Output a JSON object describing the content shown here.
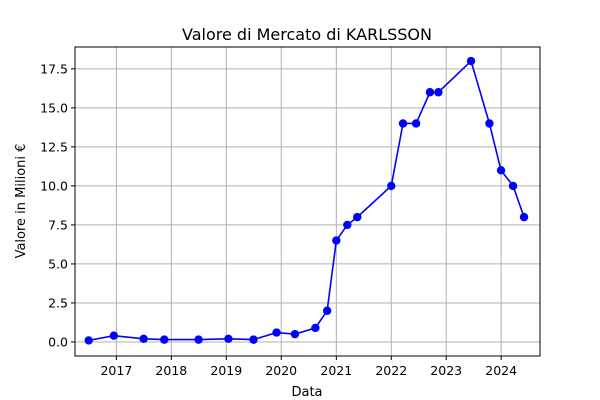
{
  "chart_data": {
    "type": "line",
    "title": "Valore di Mercato di KARLSSON",
    "xlabel": "Data",
    "ylabel": "Valore in Milioni €",
    "ylim": [
      -0.9,
      18.9
    ],
    "xlim": [
      "2016-04-01",
      "2024-09-15"
    ],
    "grid": true,
    "line_color": "#0000ff",
    "marker": "circle",
    "x_ticks": [
      {
        "label": "2017",
        "date": "2017-01-01"
      },
      {
        "label": "2018",
        "date": "2018-01-01"
      },
      {
        "label": "2019",
        "date": "2019-01-01"
      },
      {
        "label": "2020",
        "date": "2020-01-01"
      },
      {
        "label": "2021",
        "date": "2021-01-01"
      },
      {
        "label": "2022",
        "date": "2022-01-01"
      },
      {
        "label": "2023",
        "date": "2023-01-01"
      },
      {
        "label": "2024",
        "date": "2024-01-01"
      }
    ],
    "y_ticks": [
      {
        "label": "0.0",
        "value": 0.0
      },
      {
        "label": "2.5",
        "value": 2.5
      },
      {
        "label": "5.0",
        "value": 5.0
      },
      {
        "label": "7.5",
        "value": 7.5
      },
      {
        "label": "10.0",
        "value": 10.0
      },
      {
        "label": "12.5",
        "value": 12.5
      },
      {
        "label": "15.0",
        "value": 15.0
      },
      {
        "label": "17.5",
        "value": 17.5
      }
    ],
    "series": [
      {
        "points": [
          {
            "x": "2016-07-01",
            "y": 0.1
          },
          {
            "x": "2016-12-15",
            "y": 0.4
          },
          {
            "x": "2017-07-01",
            "y": 0.2
          },
          {
            "x": "2017-11-15",
            "y": 0.15
          },
          {
            "x": "2018-07-01",
            "y": 0.15
          },
          {
            "x": "2019-01-15",
            "y": 0.2
          },
          {
            "x": "2019-07-01",
            "y": 0.15
          },
          {
            "x": "2019-12-01",
            "y": 0.6
          },
          {
            "x": "2020-04-01",
            "y": 0.5
          },
          {
            "x": "2020-08-15",
            "y": 0.9
          },
          {
            "x": "2020-11-01",
            "y": 2.0
          },
          {
            "x": "2021-01-01",
            "y": 6.5
          },
          {
            "x": "2021-03-15",
            "y": 7.5
          },
          {
            "x": "2021-05-20",
            "y": 8.0
          },
          {
            "x": "2022-01-01",
            "y": 10.0
          },
          {
            "x": "2022-03-20",
            "y": 14.0
          },
          {
            "x": "2022-06-15",
            "y": 14.0
          },
          {
            "x": "2022-09-15",
            "y": 16.0
          },
          {
            "x": "2022-11-10",
            "y": 16.0
          },
          {
            "x": "2023-06-15",
            "y": 18.0
          },
          {
            "x": "2023-10-15",
            "y": 14.0
          },
          {
            "x": "2023-12-31",
            "y": 11.0
          },
          {
            "x": "2024-03-20",
            "y": 10.0
          },
          {
            "x": "2024-06-01",
            "y": 8.0
          }
        ]
      }
    ]
  }
}
